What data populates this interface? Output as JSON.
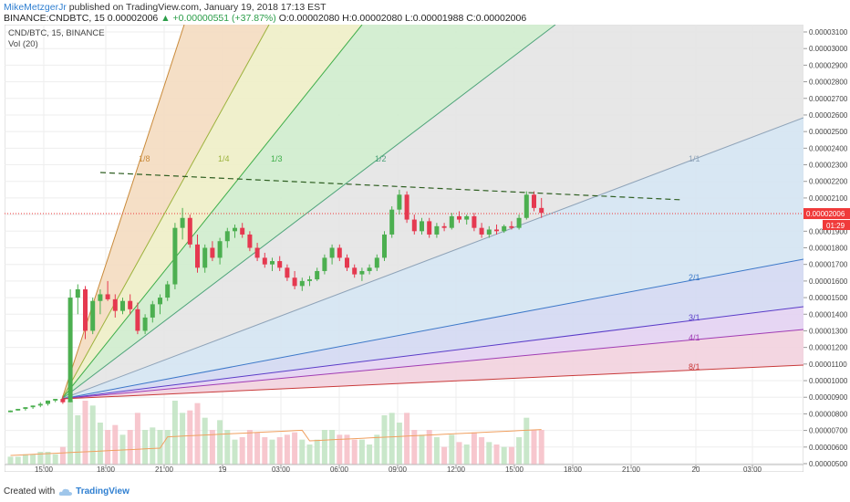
{
  "header": {
    "author": "MikeMetzgerJr",
    "published": "published on TradingView.com, January 19, 2018 17:13 EST"
  },
  "symbol_line": {
    "symbol": "BINANCE:CNDBTC, 15",
    "last": "0.00002006",
    "change": "▲ +0.00000551 (+37.87%)",
    "ohlc": "O:0.00002080 H:0.00002080 L:0.00001988 C:0.00002006"
  },
  "legend": {
    "pair": "CND/BTC, 15, BINANCE",
    "vol": "Vol (20)"
  },
  "price_axis": {
    "ticks": [
      "0.00003100",
      "0.00003000",
      "0.00002900",
      "0.00002800",
      "0.00002700",
      "0.00002600",
      "0.00002500",
      "0.00002400",
      "0.00002300",
      "0.00002200",
      "0.00002100",
      "0.00002000",
      "0.00001900",
      "0.00001800",
      "0.00001700",
      "0.00001600",
      "0.00001500",
      "0.00001400",
      "0.00001300",
      "0.00001200",
      "0.00001100",
      "0.00001000",
      "0.00000900",
      "0.00000800",
      "0.00000700",
      "0.00000600",
      "0.00000500"
    ],
    "last_price_label": "0.00002006",
    "countdown_label": "01:29"
  },
  "time_axis": {
    "ticks": [
      "15:00",
      "18:00",
      "21:00",
      "19",
      "03:00",
      "06:00",
      "09:00",
      "12:00",
      "15:00",
      "18:00",
      "21:00",
      "20",
      "03:00"
    ]
  },
  "fan_labels": [
    "1/8",
    "1/4",
    "1/3",
    "1/2",
    "1/1",
    "2/1",
    "3/1",
    "4/1",
    "8/1"
  ],
  "footer": {
    "created_with": "Created with",
    "brand": "TradingView"
  },
  "colors": {
    "up": "#4caf50",
    "down": "#e53950",
    "last_price": "#f03a3a",
    "fan_1_8": "#c98a3a",
    "fan_1_4": "#9cb23c",
    "fan_1_3": "#3fae4a",
    "fan_1_2": "#4ea37a",
    "fan_1_1": "#8fa3b8",
    "fan_2_1": "#3c78c8",
    "fan_3_1": "#5a3cc8",
    "fan_4_1": "#a03cb4",
    "fan_8_1": "#c83a3a",
    "trendline": "#2f5f22"
  },
  "chart_data": {
    "type": "candlestick",
    "title": "CND/BTC, 15, BINANCE",
    "ylim": [
      4.5e-06,
      3.16e-05
    ],
    "x_ticks": [
      "15:00",
      "18:00",
      "21:00",
      "19",
      "03:00",
      "06:00",
      "09:00",
      "12:00",
      "15:00",
      "18:00",
      "21:00",
      "20",
      "03:00"
    ],
    "last_price": 2.006e-05,
    "series": [
      {
        "name": "Vol (20)",
        "type": "volume"
      }
    ],
    "candles": [
      [
        8.1e-06,
        8.2e-06,
        8.1e-06,
        8.2e-06
      ],
      [
        8.2e-06,
        8.3e-06,
        8.2e-06,
        8.3e-06
      ],
      [
        8.3e-06,
        8.4e-06,
        8.2e-06,
        8.4e-06
      ],
      [
        8.4e-06,
        8.5e-06,
        8.3e-06,
        8.5e-06
      ],
      [
        8.5e-06,
        8.7e-06,
        8.4e-06,
        8.6e-06
      ],
      [
        8.6e-06,
        8.8e-06,
        8.5e-06,
        8.8e-06
      ],
      [
        8.8e-06,
        8.9e-06,
        8.7e-06,
        8.9e-06
      ],
      [
        8.9e-06,
        9.1e-06,
        8.6e-06,
        8.7e-06
      ],
      [
        8.7e-06,
        1.55e-05,
        8.7e-06,
        1.5e-05
      ],
      [
        1.5e-05,
        1.58e-05,
        1.4e-05,
        1.55e-05
      ],
      [
        1.55e-05,
        1.57e-05,
        1.25e-05,
        1.3e-05
      ],
      [
        1.3e-05,
        1.5e-05,
        1.28e-05,
        1.48e-05
      ],
      [
        1.48e-05,
        1.55e-05,
        1.4e-05,
        1.52e-05
      ],
      [
        1.52e-05,
        1.6e-05,
        1.48e-05,
        1.49e-05
      ],
      [
        1.49e-05,
        1.52e-05,
        1.38e-05,
        1.42e-05
      ],
      [
        1.42e-05,
        1.5e-05,
        1.4e-05,
        1.48e-05
      ],
      [
        1.48e-05,
        1.52e-05,
        1.4e-05,
        1.43e-05
      ],
      [
        1.43e-05,
        1.47e-05,
        1.28e-05,
        1.3e-05
      ],
      [
        1.3e-05,
        1.4e-05,
        1.28e-05,
        1.38e-05
      ],
      [
        1.38e-05,
        1.48e-05,
        1.35e-05,
        1.46e-05
      ],
      [
        1.46e-05,
        1.52e-05,
        1.4e-05,
        1.5e-05
      ],
      [
        1.5e-05,
        1.6e-05,
        1.48e-05,
        1.58e-05
      ],
      [
        1.58e-05,
        1.95e-05,
        1.55e-05,
        1.92e-05
      ],
      [
        1.92e-05,
        2.04e-05,
        1.85e-05,
        1.98e-05
      ],
      [
        1.98e-05,
        2e-05,
        1.8e-05,
        1.82e-05
      ],
      [
        1.82e-05,
        1.88e-05,
        1.65e-05,
        1.68e-05
      ],
      [
        1.68e-05,
        1.82e-05,
        1.65e-05,
        1.8e-05
      ],
      [
        1.8e-05,
        1.84e-05,
        1.72e-05,
        1.74e-05
      ],
      [
        1.74e-05,
        1.86e-05,
        1.7e-05,
        1.84e-05
      ],
      [
        1.84e-05,
        1.92e-05,
        1.8e-05,
        1.9e-05
      ],
      [
        1.9e-05,
        1.94e-05,
        1.86e-05,
        1.92e-05
      ],
      [
        1.92e-05,
        1.95e-05,
        1.86e-05,
        1.88e-05
      ],
      [
        1.88e-05,
        1.9e-05,
        1.78e-05,
        1.8e-05
      ],
      [
        1.8e-05,
        1.83e-05,
        1.72e-05,
        1.74e-05
      ],
      [
        1.74e-05,
        1.77e-05,
        1.68e-05,
        1.7e-05
      ],
      [
        1.7e-05,
        1.74e-05,
        1.66e-05,
        1.72e-05
      ],
      [
        1.72e-05,
        1.75e-05,
        1.66e-05,
        1.68e-05
      ],
      [
        1.68e-05,
        1.7e-05,
        1.6e-05,
        1.62e-05
      ],
      [
        1.62e-05,
        1.66e-05,
        1.55e-05,
        1.57e-05
      ],
      [
        1.57e-05,
        1.62e-05,
        1.54e-05,
        1.6e-05
      ],
      [
        1.6e-05,
        1.63e-05,
        1.57e-05,
        1.61e-05
      ],
      [
        1.61e-05,
        1.68e-05,
        1.6e-05,
        1.66e-05
      ],
      [
        1.66e-05,
        1.76e-05,
        1.64e-05,
        1.74e-05
      ],
      [
        1.74e-05,
        1.82e-05,
        1.7e-05,
        1.8e-05
      ],
      [
        1.8e-05,
        1.82e-05,
        1.72e-05,
        1.74e-05
      ],
      [
        1.74e-05,
        1.76e-05,
        1.66e-05,
        1.68e-05
      ],
      [
        1.68e-05,
        1.7e-05,
        1.62e-05,
        1.64e-05
      ],
      [
        1.64e-05,
        1.68e-05,
        1.6e-05,
        1.66e-05
      ],
      [
        1.66e-05,
        1.7e-05,
        1.64e-05,
        1.68e-05
      ],
      [
        1.68e-05,
        1.76e-05,
        1.66e-05,
        1.74e-05
      ],
      [
        1.74e-05,
        1.9e-05,
        1.72e-05,
        1.88e-05
      ],
      [
        1.88e-05,
        2.05e-05,
        1.86e-05,
        2.03e-05
      ],
      [
        2.03e-05,
        2.15e-05,
        2e-05,
        2.12e-05
      ],
      [
        2.12e-05,
        2.14e-05,
        1.95e-05,
        1.97e-05
      ],
      [
        1.97e-05,
        2e-05,
        1.88e-05,
        1.9e-05
      ],
      [
        1.9e-05,
        1.98e-05,
        1.88e-05,
        1.96e-05
      ],
      [
        1.96e-05,
        1.98e-05,
        1.86e-05,
        1.88e-05
      ],
      [
        1.88e-05,
        1.95e-05,
        1.86e-05,
        1.93e-05
      ],
      [
        1.93e-05,
        1.95e-05,
        1.9e-05,
        1.92e-05
      ],
      [
        1.92e-05,
        2.01e-05,
        1.91e-05,
        1.99e-05
      ],
      [
        1.99e-05,
        2.02e-05,
        1.95e-05,
        1.97e-05
      ],
      [
        1.97e-05,
        2e-05,
        1.94e-05,
        1.99e-05
      ],
      [
        1.99e-05,
        2.01e-05,
        1.9e-05,
        1.92e-05
      ],
      [
        1.92e-05,
        1.95e-05,
        1.86e-05,
        1.88e-05
      ],
      [
        1.88e-05,
        1.93e-05,
        1.86e-05,
        1.91e-05
      ],
      [
        1.91e-05,
        1.94e-05,
        1.88e-05,
        1.9e-05
      ],
      [
        1.9e-05,
        1.94e-05,
        1.89e-05,
        1.93e-05
      ],
      [
        1.93e-05,
        1.96e-05,
        1.91e-05,
        1.92e-05
      ],
      [
        1.92e-05,
        2e-05,
        1.91e-05,
        1.98e-05
      ],
      [
        1.98e-05,
        2.14e-05,
        1.97e-05,
        2.12e-05
      ],
      [
        2.12e-05,
        2.14e-05,
        2.02e-05,
        2.04e-05
      ],
      [
        2.04e-05,
        2.1e-05,
        1.98e-05,
        2.01e-05
      ]
    ]
  }
}
